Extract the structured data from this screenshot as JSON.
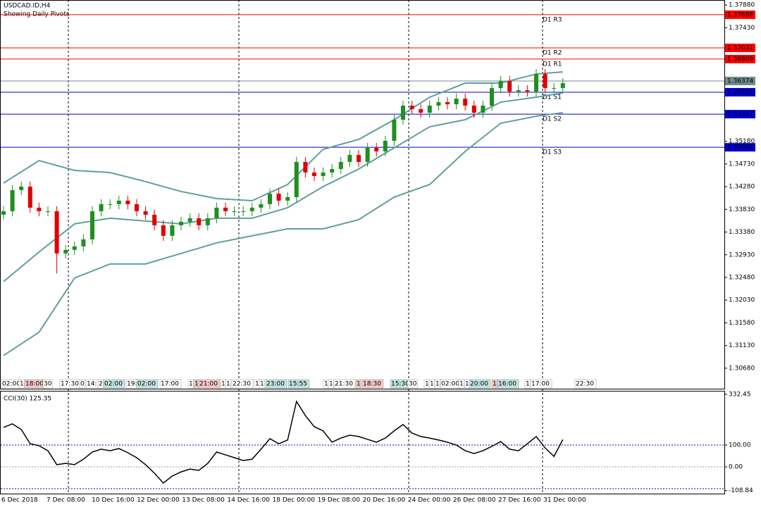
{
  "chart_data": [
    {
      "type": "candlestick",
      "title": "USDCAD.ID,H4",
      "subtitle": "Showing Daily Pivots",
      "up_color": "#1f8f1f",
      "down_color": "#e00000",
      "open": [
        1.33724,
        1.33793,
        1.34212,
        1.34281,
        1.33863,
        1.33793,
        1.33793,
        1.32956,
        1.33026,
        1.33096,
        1.33235,
        1.33793,
        1.33933,
        1.33933,
        1.34002,
        1.33933,
        1.33793,
        1.33723,
        1.33514,
        1.33305,
        1.33514,
        1.33584,
        1.33654,
        1.33514,
        1.33654,
        1.33863,
        1.33793,
        1.33793,
        1.33793,
        1.33863,
        1.33933,
        1.34142,
        1.34002,
        1.34072,
        1.3477,
        1.3456,
        1.34491,
        1.3456,
        1.3463,
        1.3477,
        1.34909,
        1.3477,
        1.35049,
        1.34979,
        1.35188,
        1.35607,
        1.35886,
        1.35816,
        1.35746,
        1.35886,
        1.35955,
        1.35913,
        1.36025,
        1.35886,
        1.35746,
        1.35886,
        1.36234,
        1.36374,
        1.36165,
        1.36192,
        1.36165,
        1.36513,
        1.36234,
        1.36234
      ],
      "high": [
        1.33893,
        1.34312,
        1.34381,
        1.34381,
        1.33963,
        1.33893,
        1.33893,
        1.33126,
        1.33196,
        1.33335,
        1.33893,
        1.34033,
        1.34033,
        1.34102,
        1.34102,
        1.34033,
        1.33893,
        1.33823,
        1.33614,
        1.33614,
        1.33684,
        1.33754,
        1.33754,
        1.33754,
        1.33963,
        1.33963,
        1.33893,
        1.33893,
        1.33963,
        1.34033,
        1.34242,
        1.34242,
        1.34172,
        1.3487,
        1.3487,
        1.3466,
        1.3466,
        1.3473,
        1.3487,
        1.35009,
        1.35009,
        1.35149,
        1.35149,
        1.35288,
        1.35707,
        1.35986,
        1.35986,
        1.35916,
        1.35986,
        1.36055,
        1.36055,
        1.36125,
        1.36125,
        1.35986,
        1.35986,
        1.36334,
        1.36474,
        1.36474,
        1.36292,
        1.36292,
        1.36613,
        1.36613,
        1.36334,
        1.36432
      ],
      "low": [
        1.33624,
        1.33693,
        1.34112,
        1.33763,
        1.33693,
        1.33693,
        1.3256,
        1.32856,
        1.32926,
        1.32996,
        1.33135,
        1.33693,
        1.33833,
        1.33833,
        1.33833,
        1.33693,
        1.33623,
        1.33414,
        1.33205,
        1.33205,
        1.33414,
        1.33484,
        1.33414,
        1.33414,
        1.33554,
        1.33693,
        1.33693,
        1.33693,
        1.33693,
        1.33763,
        1.33833,
        1.33902,
        1.33902,
        1.33972,
        1.3446,
        1.34391,
        1.34391,
        1.3446,
        1.3453,
        1.3467,
        1.3467,
        1.3467,
        1.34879,
        1.34879,
        1.35088,
        1.35507,
        1.35716,
        1.35646,
        1.35646,
        1.35786,
        1.35813,
        1.35813,
        1.35786,
        1.35646,
        1.35646,
        1.35786,
        1.36134,
        1.36065,
        1.36065,
        1.36065,
        1.36065,
        1.36134,
        1.36134,
        1.36134
      ],
      "close": [
        1.33793,
        1.34212,
        1.34281,
        1.33863,
        1.33793,
        1.33793,
        1.32956,
        1.33026,
        1.33096,
        1.33235,
        1.33793,
        1.33933,
        1.33933,
        1.34002,
        1.33933,
        1.33793,
        1.33723,
        1.33514,
        1.33305,
        1.33514,
        1.33584,
        1.33654,
        1.33514,
        1.33654,
        1.33863,
        1.33793,
        1.33793,
        1.33793,
        1.33863,
        1.33933,
        1.34142,
        1.34002,
        1.34072,
        1.3477,
        1.3456,
        1.34491,
        1.3456,
        1.3463,
        1.3477,
        1.34909,
        1.3477,
        1.35049,
        1.34979,
        1.35188,
        1.35607,
        1.35886,
        1.35816,
        1.35746,
        1.35886,
        1.35955,
        1.35913,
        1.36025,
        1.35886,
        1.35746,
        1.35886,
        1.36234,
        1.36374,
        1.36165,
        1.36192,
        1.36165,
        1.36513,
        1.36234,
        1.36234,
        1.36332
      ],
      "bands": {
        "color": "#5f9ea0",
        "x": [
          0,
          4,
          8,
          12,
          16,
          20,
          24,
          28,
          32,
          36,
          40,
          44,
          48,
          52,
          56,
          60,
          63
        ],
        "upper": [
          1.34351,
          1.34797,
          1.34602,
          1.3456,
          1.34379,
          1.34184,
          1.34044,
          1.34002,
          1.34323,
          1.35021,
          1.35216,
          1.35607,
          1.36053,
          1.36332,
          1.36332,
          1.36513,
          1.36555
        ],
        "middle": [
          1.32398,
          1.32984,
          1.33542,
          1.33654,
          1.33598,
          1.33542,
          1.33654,
          1.33654,
          1.33863,
          1.34281,
          1.3463,
          1.35049,
          1.35467,
          1.35607,
          1.35955,
          1.36053,
          1.36137
        ],
        "lower": [
          1.30933,
          1.31394,
          1.32468,
          1.32747,
          1.32747,
          1.32956,
          1.33165,
          1.33305,
          1.33444,
          1.33444,
          1.33626,
          1.34072,
          1.34323,
          1.34979,
          1.35537,
          1.35676,
          1.35746
        ]
      },
      "pivots": [
        {
          "name": "D1 R3",
          "value": 1.37688,
          "label": "1.37688",
          "color": "#ff0000"
        },
        {
          "name": "D1 R2",
          "value": 1.37031,
          "label": "1.37031",
          "color": "#ff0000"
        },
        {
          "name": "D1 R1",
          "value": 1.36809,
          "label": "1.36809",
          "color": "#ff0000"
        },
        {
          "name": "D1 S1",
          "value": 1.36152,
          "label": "1.36152",
          "color": "#0000cd"
        },
        {
          "name": "D1 S2",
          "value": 1.35717,
          "label": "1.35717",
          "color": "#0000cd"
        },
        {
          "name": "D1 S3",
          "value": 1.3506,
          "label": "1.35060",
          "color": "#0000cd"
        }
      ],
      "bid": {
        "value": 1.36374,
        "label": "1.36374",
        "color": "#6e8b8b"
      },
      "ylim": [
        1.3047,
        1.3798
      ],
      "yticks": [
        {
          "value": 1.3788,
          "label": "1.37880"
        },
        {
          "value": 1.3743,
          "label": "1.37430"
        },
        {
          "value": 1.3518,
          "label": "1.35180"
        },
        {
          "value": 1.3473,
          "label": "1.34730"
        },
        {
          "value": 1.3428,
          "label": "1.34280"
        },
        {
          "value": 1.3383,
          "label": "1.33830"
        },
        {
          "value": 1.3338,
          "label": "1.33380"
        },
        {
          "value": 1.3293,
          "label": "1.32930"
        },
        {
          "value": 1.3248,
          "label": "1.32480"
        },
        {
          "value": 1.3203,
          "label": "1.32030"
        },
        {
          "value": 1.3158,
          "label": "1.31580"
        },
        {
          "value": 1.3113,
          "label": "1.31130"
        },
        {
          "value": 1.3068,
          "label": "1.30680"
        }
      ],
      "session_labels": [
        "02:00",
        "1",
        "18:00",
        "30",
        "17:30",
        "0",
        "14:",
        "2",
        "02:00",
        "19:",
        "02:00",
        "17:00",
        "1",
        "1",
        "21:00",
        "1",
        "1",
        "22:30",
        "1",
        "1",
        "23:00",
        "15:55",
        "1",
        "1",
        "21:30",
        "1",
        "18:30",
        "15:30",
        "30",
        "1",
        "1",
        "1",
        "02:00",
        "1",
        "1",
        "20:00",
        "1",
        "16:00",
        "1",
        "17:00",
        "22:30"
      ],
      "time_labels": [
        "6 Dec 2018",
        "7 Dec 08:00",
        "10 Dec 16:00",
        "12 Dec 00:00",
        "13 Dec 08:00",
        "14 Dec 16:00",
        "18 Dec 00:00",
        "19 Dec 08:00",
        "20 Dec 16:00",
        "24 Dec 00:00",
        "26 Dec 08:00",
        "27 Dec 16:00",
        "31 Dec 00:00"
      ]
    },
    {
      "type": "line",
      "title": "CCI(30) 125.35",
      "color": "#000000",
      "values": [
        181,
        197,
        171,
        106,
        97,
        74,
        10,
        16,
        10,
        35,
        68,
        81,
        74,
        84,
        65,
        42,
        10,
        -29,
        -74,
        -42,
        -23,
        -10,
        -16,
        16,
        68,
        55,
        42,
        29,
        35,
        81,
        129,
        106,
        123,
        300,
        235,
        184,
        165,
        113,
        132,
        145,
        139,
        126,
        113,
        132,
        165,
        194,
        155,
        139,
        132,
        123,
        113,
        100,
        74,
        61,
        74,
        94,
        116,
        81,
        74,
        106,
        139,
        87,
        48,
        125
      ],
      "ylim": [
        -125.8,
        345.2
      ],
      "yticks": [
        {
          "value": 332.45,
          "label": "332.45"
        },
        {
          "value": 100,
          "label": "100.00"
        },
        {
          "value": 0,
          "label": "0.00"
        },
        {
          "value": -108.84,
          "label": "-108.84"
        }
      ],
      "levels": [
        100,
        0,
        -100
      ]
    }
  ]
}
